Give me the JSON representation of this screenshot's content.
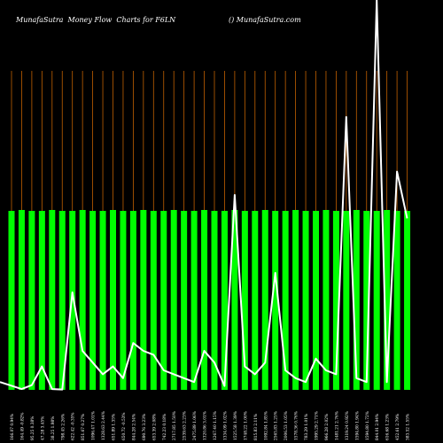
{
  "header": {
    "left": "MunafaSutra  Money Flow  Charts for F6LN",
    "right": "() MunafaSutra.com"
  },
  "colors": {
    "background": "#000000",
    "bar": "#00ff00",
    "grid": "#c06000",
    "line": "#ffffff",
    "text": "#ffffff"
  },
  "chart_data": {
    "type": "bar",
    "categories": [
      "166.07 0.94%",
      "164.49 -0.82%",
      "95.25 0.38%",
      "47.28 3.45%",
      "38.25 1.98%",
      "798.45 2.26%",
      "622.42 -0.35%",
      "851.67 0.27%",
      "1096.47 1.01%",
      "1328.63 2.44%",
      "651.89 1.35%",
      "650.72 -0.53%",
      "844.28 2.54%",
      "690.76 3.23%",
      "653.39 2.08%",
      "742.23 0.18%",
      "2717.85 1.50%",
      "2539.63 2.23%",
      "2475.89 1.06%",
      "1320.86 3.01%",
      "1267.40 1.15%",
      "1334.09 1.02%",
      "1525.58 1.39%",
      "1748.22 1.00%",
      "815.83 2.11%",
      "1092.84 1.85%",
      "2565.83 1.25%",
      "2006.53 1.05%",
      "1578.36 0.76%",
      "783.29 1.01%",
      "1995.29 2.71%",
      "966.28 2.02%",
      "1481.21 2.76%",
      "1319.24 0.92%",
      "1594.80 1.94%",
      "1594.80 1.72%",
      "844.01 2.94%",
      "616.68 1.23%",
      "452.61 2.79%",
      "383.52 1.55%"
    ],
    "values": [
      1,
      1,
      1,
      1,
      1,
      1,
      1,
      1,
      1,
      1,
      1,
      1,
      1,
      1,
      1,
      1,
      1,
      1,
      1,
      1,
      1,
      1,
      1,
      1,
      1,
      1,
      1,
      1,
      1,
      1,
      1,
      1,
      1,
      1,
      1,
      1,
      1,
      1,
      1,
      1
    ],
    "line": [
      20,
      2,
      12,
      60,
      2,
      1,
      250,
      100,
      70,
      40,
      60,
      30,
      120,
      100,
      90,
      50,
      40,
      30,
      20,
      100,
      70,
      10,
      500,
      60,
      40,
      70,
      300,
      50,
      30,
      20,
      80,
      50,
      40,
      700,
      30,
      20,
      1000,
      20,
      560,
      440
    ],
    "grid": true,
    "xlabel": "",
    "ylabel": ""
  }
}
